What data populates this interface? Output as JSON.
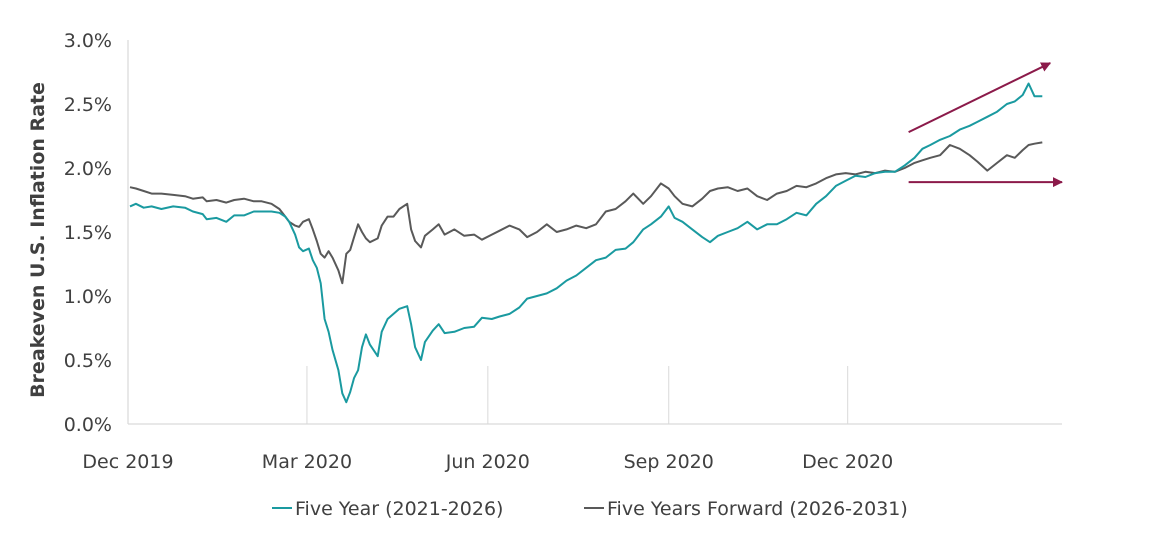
{
  "chart_data": {
    "type": "line",
    "title": "",
    "xlabel": "",
    "ylabel": "Breakeven U.S. Inflation Rate",
    "ylim": [
      0.0,
      3.0
    ],
    "yticks": [
      "0.0%",
      "0.5%",
      "1.0%",
      "1.5%",
      "2.0%",
      "2.5%",
      "3.0%"
    ],
    "ytick_values": [
      0.0,
      0.5,
      1.0,
      1.5,
      2.0,
      2.5,
      3.0
    ],
    "xlim": [
      "2019-12-01",
      "2021-03-20"
    ],
    "xticks": [
      {
        "date": "2019-12-01",
        "label": "Dec 2019"
      },
      {
        "date": "2020-03-01",
        "label": "Mar 2020"
      },
      {
        "date": "2020-06-01",
        "label": "Jun 2020"
      },
      {
        "date": "2020-09-01",
        "label": "Sep 2020"
      },
      {
        "date": "2020-12-01",
        "label": "Dec 2020"
      }
    ],
    "grid": false,
    "legend_position": "bottom",
    "series": [
      {
        "name": "Five Year (2021-2026)",
        "color": "#1a9aa0",
        "points": [
          [
            "2019-12-02",
            1.7
          ],
          [
            "2019-12-05",
            1.72
          ],
          [
            "2019-12-09",
            1.69
          ],
          [
            "2019-12-13",
            1.7
          ],
          [
            "2019-12-18",
            1.68
          ],
          [
            "2019-12-24",
            1.7
          ],
          [
            "2019-12-30",
            1.69
          ],
          [
            "2020-01-03",
            1.66
          ],
          [
            "2020-01-08",
            1.64
          ],
          [
            "2020-01-10",
            1.6
          ],
          [
            "2020-01-15",
            1.61
          ],
          [
            "2020-01-20",
            1.58
          ],
          [
            "2020-01-24",
            1.63
          ],
          [
            "2020-01-29",
            1.63
          ],
          [
            "2020-02-03",
            1.66
          ],
          [
            "2020-02-07",
            1.66
          ],
          [
            "2020-02-12",
            1.66
          ],
          [
            "2020-02-16",
            1.65
          ],
          [
            "2020-02-19",
            1.62
          ],
          [
            "2020-02-21",
            1.58
          ],
          [
            "2020-02-24",
            1.48
          ],
          [
            "2020-02-26",
            1.38
          ],
          [
            "2020-02-28",
            1.35
          ],
          [
            "2020-03-02",
            1.37
          ],
          [
            "2020-03-04",
            1.28
          ],
          [
            "2020-03-06",
            1.22
          ],
          [
            "2020-03-08",
            1.1
          ],
          [
            "2020-03-10",
            0.82
          ],
          [
            "2020-03-12",
            0.72
          ],
          [
            "2020-03-14",
            0.58
          ],
          [
            "2020-03-17",
            0.42
          ],
          [
            "2020-03-19",
            0.24
          ],
          [
            "2020-03-21",
            0.17
          ],
          [
            "2020-03-23",
            0.25
          ],
          [
            "2020-03-25",
            0.36
          ],
          [
            "2020-03-27",
            0.42
          ],
          [
            "2020-03-29",
            0.6
          ],
          [
            "2020-03-31",
            0.7
          ],
          [
            "2020-04-02",
            0.62
          ],
          [
            "2020-04-06",
            0.53
          ],
          [
            "2020-04-08",
            0.72
          ],
          [
            "2020-04-11",
            0.82
          ],
          [
            "2020-04-14",
            0.86
          ],
          [
            "2020-04-17",
            0.9
          ],
          [
            "2020-04-21",
            0.92
          ],
          [
            "2020-04-23",
            0.78
          ],
          [
            "2020-04-25",
            0.6
          ],
          [
            "2020-04-28",
            0.5
          ],
          [
            "2020-04-30",
            0.64
          ],
          [
            "2020-05-04",
            0.73
          ],
          [
            "2020-05-07",
            0.78
          ],
          [
            "2020-05-10",
            0.71
          ],
          [
            "2020-05-15",
            0.72
          ],
          [
            "2020-05-20",
            0.75
          ],
          [
            "2020-05-25",
            0.76
          ],
          [
            "2020-05-29",
            0.83
          ],
          [
            "2020-06-03",
            0.82
          ],
          [
            "2020-06-07",
            0.84
          ],
          [
            "2020-06-12",
            0.86
          ],
          [
            "2020-06-17",
            0.91
          ],
          [
            "2020-06-21",
            0.98
          ],
          [
            "2020-06-26",
            1.0
          ],
          [
            "2020-07-01",
            1.02
          ],
          [
            "2020-07-06",
            1.06
          ],
          [
            "2020-07-11",
            1.12
          ],
          [
            "2020-07-16",
            1.16
          ],
          [
            "2020-07-21",
            1.22
          ],
          [
            "2020-07-26",
            1.28
          ],
          [
            "2020-07-31",
            1.3
          ],
          [
            "2020-08-05",
            1.36
          ],
          [
            "2020-08-10",
            1.37
          ],
          [
            "2020-08-14",
            1.42
          ],
          [
            "2020-08-19",
            1.52
          ],
          [
            "2020-08-23",
            1.56
          ],
          [
            "2020-08-28",
            1.62
          ],
          [
            "2020-09-01",
            1.7
          ],
          [
            "2020-09-04",
            1.61
          ],
          [
            "2020-09-08",
            1.58
          ],
          [
            "2020-09-13",
            1.52
          ],
          [
            "2020-09-18",
            1.46
          ],
          [
            "2020-09-22",
            1.42
          ],
          [
            "2020-09-26",
            1.47
          ],
          [
            "2020-10-01",
            1.5
          ],
          [
            "2020-10-06",
            1.53
          ],
          [
            "2020-10-11",
            1.58
          ],
          [
            "2020-10-16",
            1.52
          ],
          [
            "2020-10-21",
            1.56
          ],
          [
            "2020-10-26",
            1.56
          ],
          [
            "2020-10-31",
            1.6
          ],
          [
            "2020-11-05",
            1.65
          ],
          [
            "2020-11-10",
            1.63
          ],
          [
            "2020-11-15",
            1.72
          ],
          [
            "2020-11-20",
            1.78
          ],
          [
            "2020-11-25",
            1.86
          ],
          [
            "2020-11-30",
            1.9
          ],
          [
            "2020-12-05",
            1.94
          ],
          [
            "2020-12-10",
            1.93
          ],
          [
            "2020-12-15",
            1.96
          ],
          [
            "2020-12-20",
            1.97
          ],
          [
            "2020-12-25",
            1.97
          ],
          [
            "2020-12-30",
            2.02
          ],
          [
            "2021-01-04",
            2.08
          ],
          [
            "2021-01-08",
            2.15
          ],
          [
            "2021-01-12",
            2.18
          ],
          [
            "2021-01-17",
            2.22
          ],
          [
            "2021-01-22",
            2.25
          ],
          [
            "2021-01-27",
            2.3
          ],
          [
            "2021-02-01",
            2.33
          ],
          [
            "2021-02-05",
            2.36
          ],
          [
            "2021-02-10",
            2.4
          ],
          [
            "2021-02-15",
            2.44
          ],
          [
            "2021-02-20",
            2.5
          ],
          [
            "2021-02-24",
            2.52
          ],
          [
            "2021-02-28",
            2.57
          ],
          [
            "2021-03-03",
            2.66
          ],
          [
            "2021-03-06",
            2.56
          ],
          [
            "2021-03-10",
            2.56
          ]
        ]
      },
      {
        "name": "Five Years Forward (2026-2031)",
        "color": "#595959",
        "points": [
          [
            "2019-12-02",
            1.85
          ],
          [
            "2019-12-05",
            1.84
          ],
          [
            "2019-12-09",
            1.82
          ],
          [
            "2019-12-13",
            1.8
          ],
          [
            "2019-12-18",
            1.8
          ],
          [
            "2019-12-24",
            1.79
          ],
          [
            "2019-12-30",
            1.78
          ],
          [
            "2020-01-03",
            1.76
          ],
          [
            "2020-01-08",
            1.77
          ],
          [
            "2020-01-10",
            1.74
          ],
          [
            "2020-01-15",
            1.75
          ],
          [
            "2020-01-20",
            1.73
          ],
          [
            "2020-01-24",
            1.75
          ],
          [
            "2020-01-29",
            1.76
          ],
          [
            "2020-02-03",
            1.74
          ],
          [
            "2020-02-07",
            1.74
          ],
          [
            "2020-02-12",
            1.72
          ],
          [
            "2020-02-16",
            1.68
          ],
          [
            "2020-02-19",
            1.62
          ],
          [
            "2020-02-21",
            1.58
          ],
          [
            "2020-02-24",
            1.55
          ],
          [
            "2020-02-26",
            1.54
          ],
          [
            "2020-02-28",
            1.58
          ],
          [
            "2020-03-02",
            1.6
          ],
          [
            "2020-03-04",
            1.52
          ],
          [
            "2020-03-06",
            1.43
          ],
          [
            "2020-03-08",
            1.33
          ],
          [
            "2020-03-10",
            1.3
          ],
          [
            "2020-03-12",
            1.35
          ],
          [
            "2020-03-14",
            1.3
          ],
          [
            "2020-03-17",
            1.2
          ],
          [
            "2020-03-19",
            1.1
          ],
          [
            "2020-03-21",
            1.33
          ],
          [
            "2020-03-23",
            1.36
          ],
          [
            "2020-03-25",
            1.46
          ],
          [
            "2020-03-27",
            1.56
          ],
          [
            "2020-03-29",
            1.5
          ],
          [
            "2020-03-31",
            1.45
          ],
          [
            "2020-04-02",
            1.42
          ],
          [
            "2020-04-06",
            1.45
          ],
          [
            "2020-04-08",
            1.55
          ],
          [
            "2020-04-11",
            1.62
          ],
          [
            "2020-04-14",
            1.62
          ],
          [
            "2020-04-17",
            1.68
          ],
          [
            "2020-04-21",
            1.72
          ],
          [
            "2020-04-23",
            1.52
          ],
          [
            "2020-04-25",
            1.43
          ],
          [
            "2020-04-28",
            1.38
          ],
          [
            "2020-04-30",
            1.47
          ],
          [
            "2020-05-04",
            1.52
          ],
          [
            "2020-05-07",
            1.56
          ],
          [
            "2020-05-10",
            1.48
          ],
          [
            "2020-05-15",
            1.52
          ],
          [
            "2020-05-20",
            1.47
          ],
          [
            "2020-05-25",
            1.48
          ],
          [
            "2020-05-29",
            1.44
          ],
          [
            "2020-06-03",
            1.48
          ],
          [
            "2020-06-07",
            1.51
          ],
          [
            "2020-06-12",
            1.55
          ],
          [
            "2020-06-17",
            1.52
          ],
          [
            "2020-06-21",
            1.46
          ],
          [
            "2020-06-26",
            1.5
          ],
          [
            "2020-07-01",
            1.56
          ],
          [
            "2020-07-06",
            1.5
          ],
          [
            "2020-07-11",
            1.52
          ],
          [
            "2020-07-16",
            1.55
          ],
          [
            "2020-07-21",
            1.53
          ],
          [
            "2020-07-26",
            1.56
          ],
          [
            "2020-07-31",
            1.66
          ],
          [
            "2020-08-05",
            1.68
          ],
          [
            "2020-08-10",
            1.74
          ],
          [
            "2020-08-14",
            1.8
          ],
          [
            "2020-08-19",
            1.72
          ],
          [
            "2020-08-23",
            1.78
          ],
          [
            "2020-08-28",
            1.88
          ],
          [
            "2020-09-01",
            1.84
          ],
          [
            "2020-09-04",
            1.78
          ],
          [
            "2020-09-08",
            1.72
          ],
          [
            "2020-09-13",
            1.7
          ],
          [
            "2020-09-18",
            1.76
          ],
          [
            "2020-09-22",
            1.82
          ],
          [
            "2020-09-26",
            1.84
          ],
          [
            "2020-10-01",
            1.85
          ],
          [
            "2020-10-06",
            1.82
          ],
          [
            "2020-10-11",
            1.84
          ],
          [
            "2020-10-16",
            1.78
          ],
          [
            "2020-10-21",
            1.75
          ],
          [
            "2020-10-26",
            1.8
          ],
          [
            "2020-10-31",
            1.82
          ],
          [
            "2020-11-05",
            1.86
          ],
          [
            "2020-11-10",
            1.85
          ],
          [
            "2020-11-15",
            1.88
          ],
          [
            "2020-11-20",
            1.92
          ],
          [
            "2020-11-25",
            1.95
          ],
          [
            "2020-11-30",
            1.96
          ],
          [
            "2020-12-05",
            1.95
          ],
          [
            "2020-12-10",
            1.97
          ],
          [
            "2020-12-15",
            1.96
          ],
          [
            "2020-12-20",
            1.98
          ],
          [
            "2020-12-25",
            1.97
          ],
          [
            "2020-12-30",
            2.0
          ],
          [
            "2021-01-04",
            2.04
          ],
          [
            "2021-01-08",
            2.06
          ],
          [
            "2021-01-12",
            2.08
          ],
          [
            "2021-01-17",
            2.1
          ],
          [
            "2021-01-22",
            2.18
          ],
          [
            "2021-01-27",
            2.15
          ],
          [
            "2021-02-01",
            2.1
          ],
          [
            "2021-02-05",
            2.05
          ],
          [
            "2021-02-10",
            1.98
          ],
          [
            "2021-02-15",
            2.04
          ],
          [
            "2021-02-20",
            2.1
          ],
          [
            "2021-02-24",
            2.08
          ],
          [
            "2021-02-28",
            2.14
          ],
          [
            "2021-03-03",
            2.18
          ],
          [
            "2021-03-06",
            2.19
          ],
          [
            "2021-03-10",
            2.2
          ]
        ]
      }
    ],
    "annotations": [
      {
        "type": "arrow",
        "color": "#8b1a4a",
        "from": [
          "2021-01-01",
          2.28
        ],
        "to": [
          "2021-03-14",
          2.82
        ]
      },
      {
        "type": "arrow",
        "color": "#8b1a4a",
        "from": [
          "2021-01-01",
          1.89
        ],
        "to": [
          "2021-03-20",
          1.89
        ]
      }
    ]
  }
}
